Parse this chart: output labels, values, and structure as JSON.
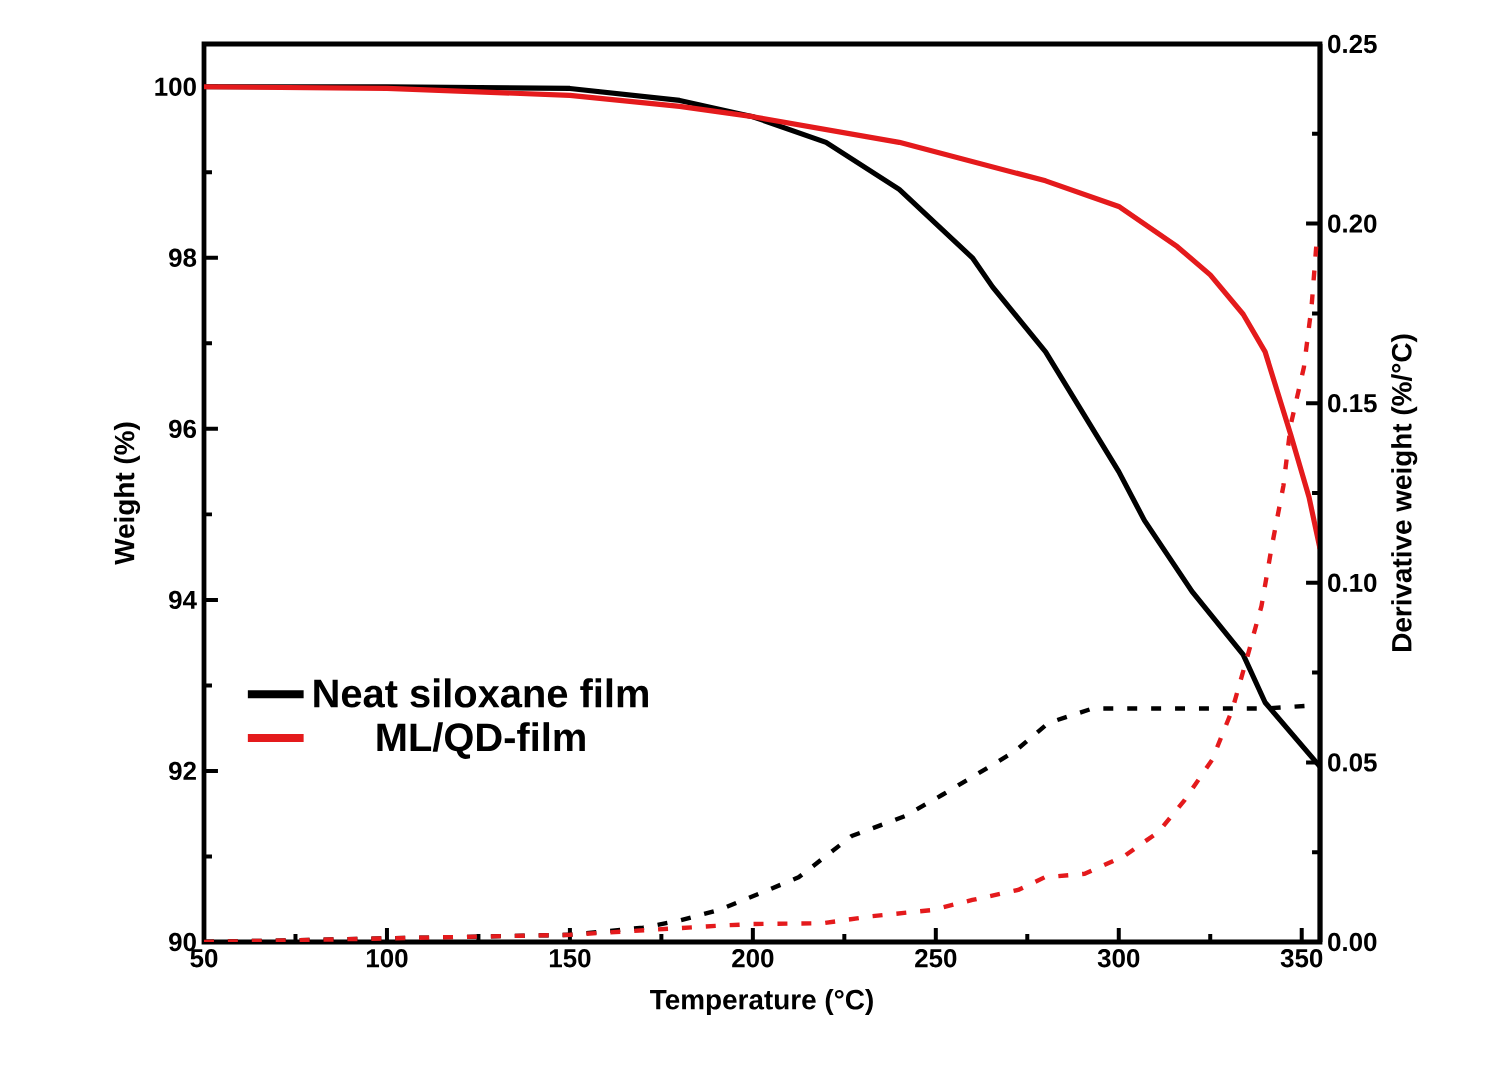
{
  "chart_data": {
    "type": "line",
    "xlabel": "Temperature (°C)",
    "ylabel": "Weight (%)",
    "y2label": "Derivative weight (%/°C)",
    "xlim": [
      50,
      355
    ],
    "ylim": [
      90,
      100.5
    ],
    "y2lim": [
      0,
      0.25
    ],
    "xticks": [
      50,
      100,
      150,
      200,
      250,
      300,
      350
    ],
    "yticks": [
      90,
      92,
      94,
      96,
      98,
      100
    ],
    "y2ticks": [
      {
        "value": 0,
        "label": "0.00"
      },
      {
        "value": 0.05,
        "label": "0.05"
      },
      {
        "value": 0.1,
        "label": "0.10"
      },
      {
        "value": 0.15,
        "label": "0.15"
      },
      {
        "value": 0.2,
        "label": "0.20"
      },
      {
        "value": 0.25,
        "label": "0.25"
      }
    ],
    "legend": "bottom left",
    "marker": "none",
    "series": [
      {
        "name": "Neat siloxane film",
        "color": "#000000",
        "line_style": "solid",
        "x": [
          50,
          100,
          150,
          180,
          200,
          220,
          240,
          260,
          265.5,
          280,
          300,
          307,
          320,
          334,
          340,
          355
        ],
        "values": [
          100,
          100,
          99.98,
          99.84,
          99.65,
          99.35,
          98.8,
          98.0,
          97.66,
          96.9,
          95.5,
          94.93,
          94.1,
          93.36,
          92.8,
          92.05
        ]
      },
      {
        "name": "ML/QD-film",
        "color": "#e41a1c",
        "line_style": "solid",
        "x": [
          50,
          100,
          150,
          180,
          200,
          240,
          280,
          300,
          316,
          325,
          334,
          340,
          347,
          352,
          355
        ],
        "values": [
          100,
          99.98,
          99.9,
          99.77,
          99.65,
          99.35,
          98.9,
          98.6,
          98.13,
          97.8,
          97.34,
          96.9,
          95.93,
          95.2,
          94.6
        ]
      },
      {
        "color": "#000000",
        "line_style": "dashed",
        "axis": "y2",
        "x": [
          50,
          100,
          150,
          170,
          180,
          190.7,
          201.6,
          212.5,
          227,
          241.5,
          251.8,
          261.7,
          271.5,
          280.8,
          292.8,
          307,
          325.5,
          340,
          355
        ],
        "values": [
          0,
          0.001,
          0.002,
          0.004,
          0.006,
          0.0089,
          0.0134,
          0.018,
          0.0295,
          0.035,
          0.041,
          0.047,
          0.053,
          0.061,
          0.065,
          0.065,
          0.065,
          0.065,
          0.066
        ]
      },
      {
        "color": "#e41a1c",
        "line_style": "dashed",
        "axis": "y2",
        "x": [
          50,
          100,
          150,
          190,
          200,
          218.9,
          232.7,
          249,
          260,
          272.5,
          279.7,
          290.7,
          301.6,
          310.8,
          318,
          325.5,
          331,
          335.3,
          339,
          341.8,
          345,
          347,
          350.6,
          352.7,
          354
        ],
        "values": [
          0,
          0.001,
          0.002,
          0.0045,
          0.005,
          0.0052,
          0.0072,
          0.0089,
          0.0117,
          0.0145,
          0.018,
          0.019,
          0.024,
          0.0306,
          0.0395,
          0.0507,
          0.0646,
          0.08,
          0.0935,
          0.11,
          0.127,
          0.144,
          0.16,
          0.177,
          0.194
        ]
      }
    ]
  }
}
